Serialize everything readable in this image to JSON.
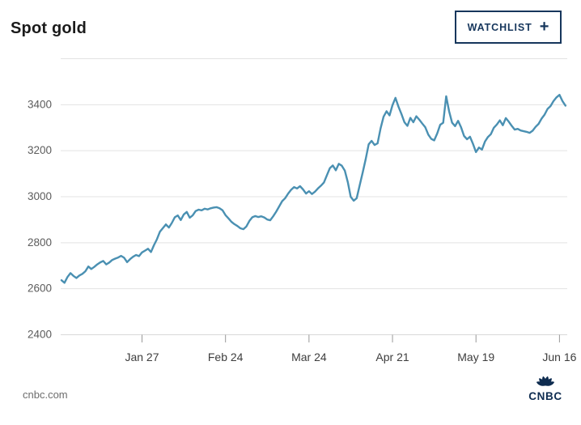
{
  "header": {
    "title": "Spot gold",
    "watchlist_button": {
      "label": "WATCHLIST",
      "plus_icon": "+"
    }
  },
  "footer": {
    "source": "cnbc.com",
    "logo_text": "CNBC",
    "logo_icon": "cnbc-peacock-icon"
  },
  "colors": {
    "line": "#4a90b2",
    "grid": "#e3e3e3",
    "bottom_grid": "#d9d9d9",
    "axis_tick": "#999999",
    "y_label": "#5c5c5c",
    "x_label": "#3d3d3d",
    "navy": "#16365c",
    "title_text": "#1b1b1b",
    "source_text": "#6d6d6d"
  },
  "chart_data": {
    "type": "line",
    "title": "Spot gold",
    "xlabel": "",
    "ylabel": "",
    "x_unit": "days from chart start (Dec 31)",
    "ylim": [
      2400,
      3600
    ],
    "y_ticks": [
      2400,
      2600,
      2800,
      3000,
      3200,
      3400
    ],
    "x_ticks": [
      {
        "x": 27,
        "label": "Jan 27"
      },
      {
        "x": 55,
        "label": "Feb 24"
      },
      {
        "x": 83,
        "label": "Mar 24"
      },
      {
        "x": 111,
        "label": "Apr 21"
      },
      {
        "x": 139,
        "label": "May 19"
      },
      {
        "x": 167,
        "label": "Jun 16"
      }
    ],
    "grid": "horizontal",
    "legend": "none",
    "series": [
      {
        "name": "Spot gold",
        "color": "#4a90b2",
        "points": [
          [
            0,
            2635
          ],
          [
            1,
            2624
          ],
          [
            2,
            2649
          ],
          [
            3,
            2666
          ],
          [
            4,
            2654
          ],
          [
            5,
            2645
          ],
          [
            6,
            2656
          ],
          [
            7,
            2663
          ],
          [
            8,
            2674
          ],
          [
            9,
            2695
          ],
          [
            10,
            2684
          ],
          [
            11,
            2693
          ],
          [
            12,
            2704
          ],
          [
            13,
            2713
          ],
          [
            14,
            2719
          ],
          [
            15,
            2704
          ],
          [
            16,
            2712
          ],
          [
            17,
            2723
          ],
          [
            18,
            2729
          ],
          [
            19,
            2734
          ],
          [
            20,
            2741
          ],
          [
            21,
            2733
          ],
          [
            22,
            2714
          ],
          [
            23,
            2727
          ],
          [
            24,
            2737
          ],
          [
            25,
            2745
          ],
          [
            26,
            2740
          ],
          [
            27,
            2756
          ],
          [
            28,
            2764
          ],
          [
            29,
            2772
          ],
          [
            30,
            2758
          ],
          [
            31,
            2787
          ],
          [
            32,
            2813
          ],
          [
            33,
            2846
          ],
          [
            34,
            2862
          ],
          [
            35,
            2878
          ],
          [
            36,
            2864
          ],
          [
            37,
            2884
          ],
          [
            38,
            2909
          ],
          [
            39,
            2917
          ],
          [
            40,
            2897
          ],
          [
            41,
            2921
          ],
          [
            42,
            2932
          ],
          [
            43,
            2907
          ],
          [
            44,
            2917
          ],
          [
            45,
            2936
          ],
          [
            46,
            2942
          ],
          [
            47,
            2939
          ],
          [
            48,
            2946
          ],
          [
            49,
            2943
          ],
          [
            50,
            2948
          ],
          [
            51,
            2951
          ],
          [
            52,
            2953
          ],
          [
            53,
            2948
          ],
          [
            54,
            2939
          ],
          [
            55,
            2918
          ],
          [
            56,
            2904
          ],
          [
            57,
            2889
          ],
          [
            58,
            2879
          ],
          [
            59,
            2871
          ],
          [
            60,
            2861
          ],
          [
            61,
            2857
          ],
          [
            62,
            2869
          ],
          [
            63,
            2893
          ],
          [
            64,
            2909
          ],
          [
            65,
            2914
          ],
          [
            66,
            2910
          ],
          [
            67,
            2913
          ],
          [
            68,
            2908
          ],
          [
            69,
            2899
          ],
          [
            70,
            2896
          ],
          [
            71,
            2913
          ],
          [
            72,
            2933
          ],
          [
            73,
            2956
          ],
          [
            74,
            2979
          ],
          [
            75,
            2992
          ],
          [
            76,
            3012
          ],
          [
            77,
            3028
          ],
          [
            78,
            3040
          ],
          [
            79,
            3034
          ],
          [
            80,
            3044
          ],
          [
            81,
            3030
          ],
          [
            82,
            3012
          ],
          [
            83,
            3022
          ],
          [
            84,
            3010
          ],
          [
            85,
            3020
          ],
          [
            86,
            3034
          ],
          [
            87,
            3046
          ],
          [
            88,
            3060
          ],
          [
            89,
            3092
          ],
          [
            90,
            3122
          ],
          [
            91,
            3134
          ],
          [
            92,
            3113
          ],
          [
            93,
            3141
          ],
          [
            94,
            3133
          ],
          [
            95,
            3112
          ],
          [
            96,
            3062
          ],
          [
            97,
            2998
          ],
          [
            98,
            2981
          ],
          [
            99,
            2992
          ],
          [
            100,
            3048
          ],
          [
            101,
            3103
          ],
          [
            102,
            3161
          ],
          [
            103,
            3226
          ],
          [
            104,
            3241
          ],
          [
            105,
            3223
          ],
          [
            106,
            3230
          ],
          [
            107,
            3295
          ],
          [
            108,
            3346
          ],
          [
            109,
            3370
          ],
          [
            110,
            3352
          ],
          [
            111,
            3396
          ],
          [
            112,
            3428
          ],
          [
            113,
            3390
          ],
          [
            114,
            3358
          ],
          [
            115,
            3322
          ],
          [
            116,
            3306
          ],
          [
            117,
            3341
          ],
          [
            118,
            3322
          ],
          [
            119,
            3348
          ],
          [
            120,
            3333
          ],
          [
            121,
            3316
          ],
          [
            122,
            3300
          ],
          [
            123,
            3268
          ],
          [
            124,
            3250
          ],
          [
            125,
            3243
          ],
          [
            126,
            3273
          ],
          [
            127,
            3311
          ],
          [
            128,
            3320
          ],
          [
            129,
            3435
          ],
          [
            130,
            3370
          ],
          [
            131,
            3320
          ],
          [
            132,
            3305
          ],
          [
            133,
            3328
          ],
          [
            134,
            3300
          ],
          [
            135,
            3262
          ],
          [
            136,
            3248
          ],
          [
            137,
            3259
          ],
          [
            138,
            3228
          ],
          [
            139,
            3192
          ],
          [
            140,
            3212
          ],
          [
            141,
            3203
          ],
          [
            142,
            3238
          ],
          [
            143,
            3258
          ],
          [
            144,
            3270
          ],
          [
            145,
            3298
          ],
          [
            146,
            3312
          ],
          [
            147,
            3330
          ],
          [
            148,
            3309
          ],
          [
            149,
            3340
          ],
          [
            150,
            3324
          ],
          [
            151,
            3306
          ],
          [
            152,
            3290
          ],
          [
            153,
            3293
          ],
          [
            154,
            3286
          ],
          [
            155,
            3283
          ],
          [
            156,
            3280
          ],
          [
            157,
            3276
          ],
          [
            158,
            3285
          ],
          [
            159,
            3302
          ],
          [
            160,
            3315
          ],
          [
            161,
            3338
          ],
          [
            162,
            3355
          ],
          [
            163,
            3380
          ],
          [
            164,
            3392
          ],
          [
            165,
            3414
          ],
          [
            166,
            3430
          ],
          [
            167,
            3441
          ],
          [
            168,
            3414
          ],
          [
            169,
            3394
          ]
        ]
      }
    ]
  }
}
